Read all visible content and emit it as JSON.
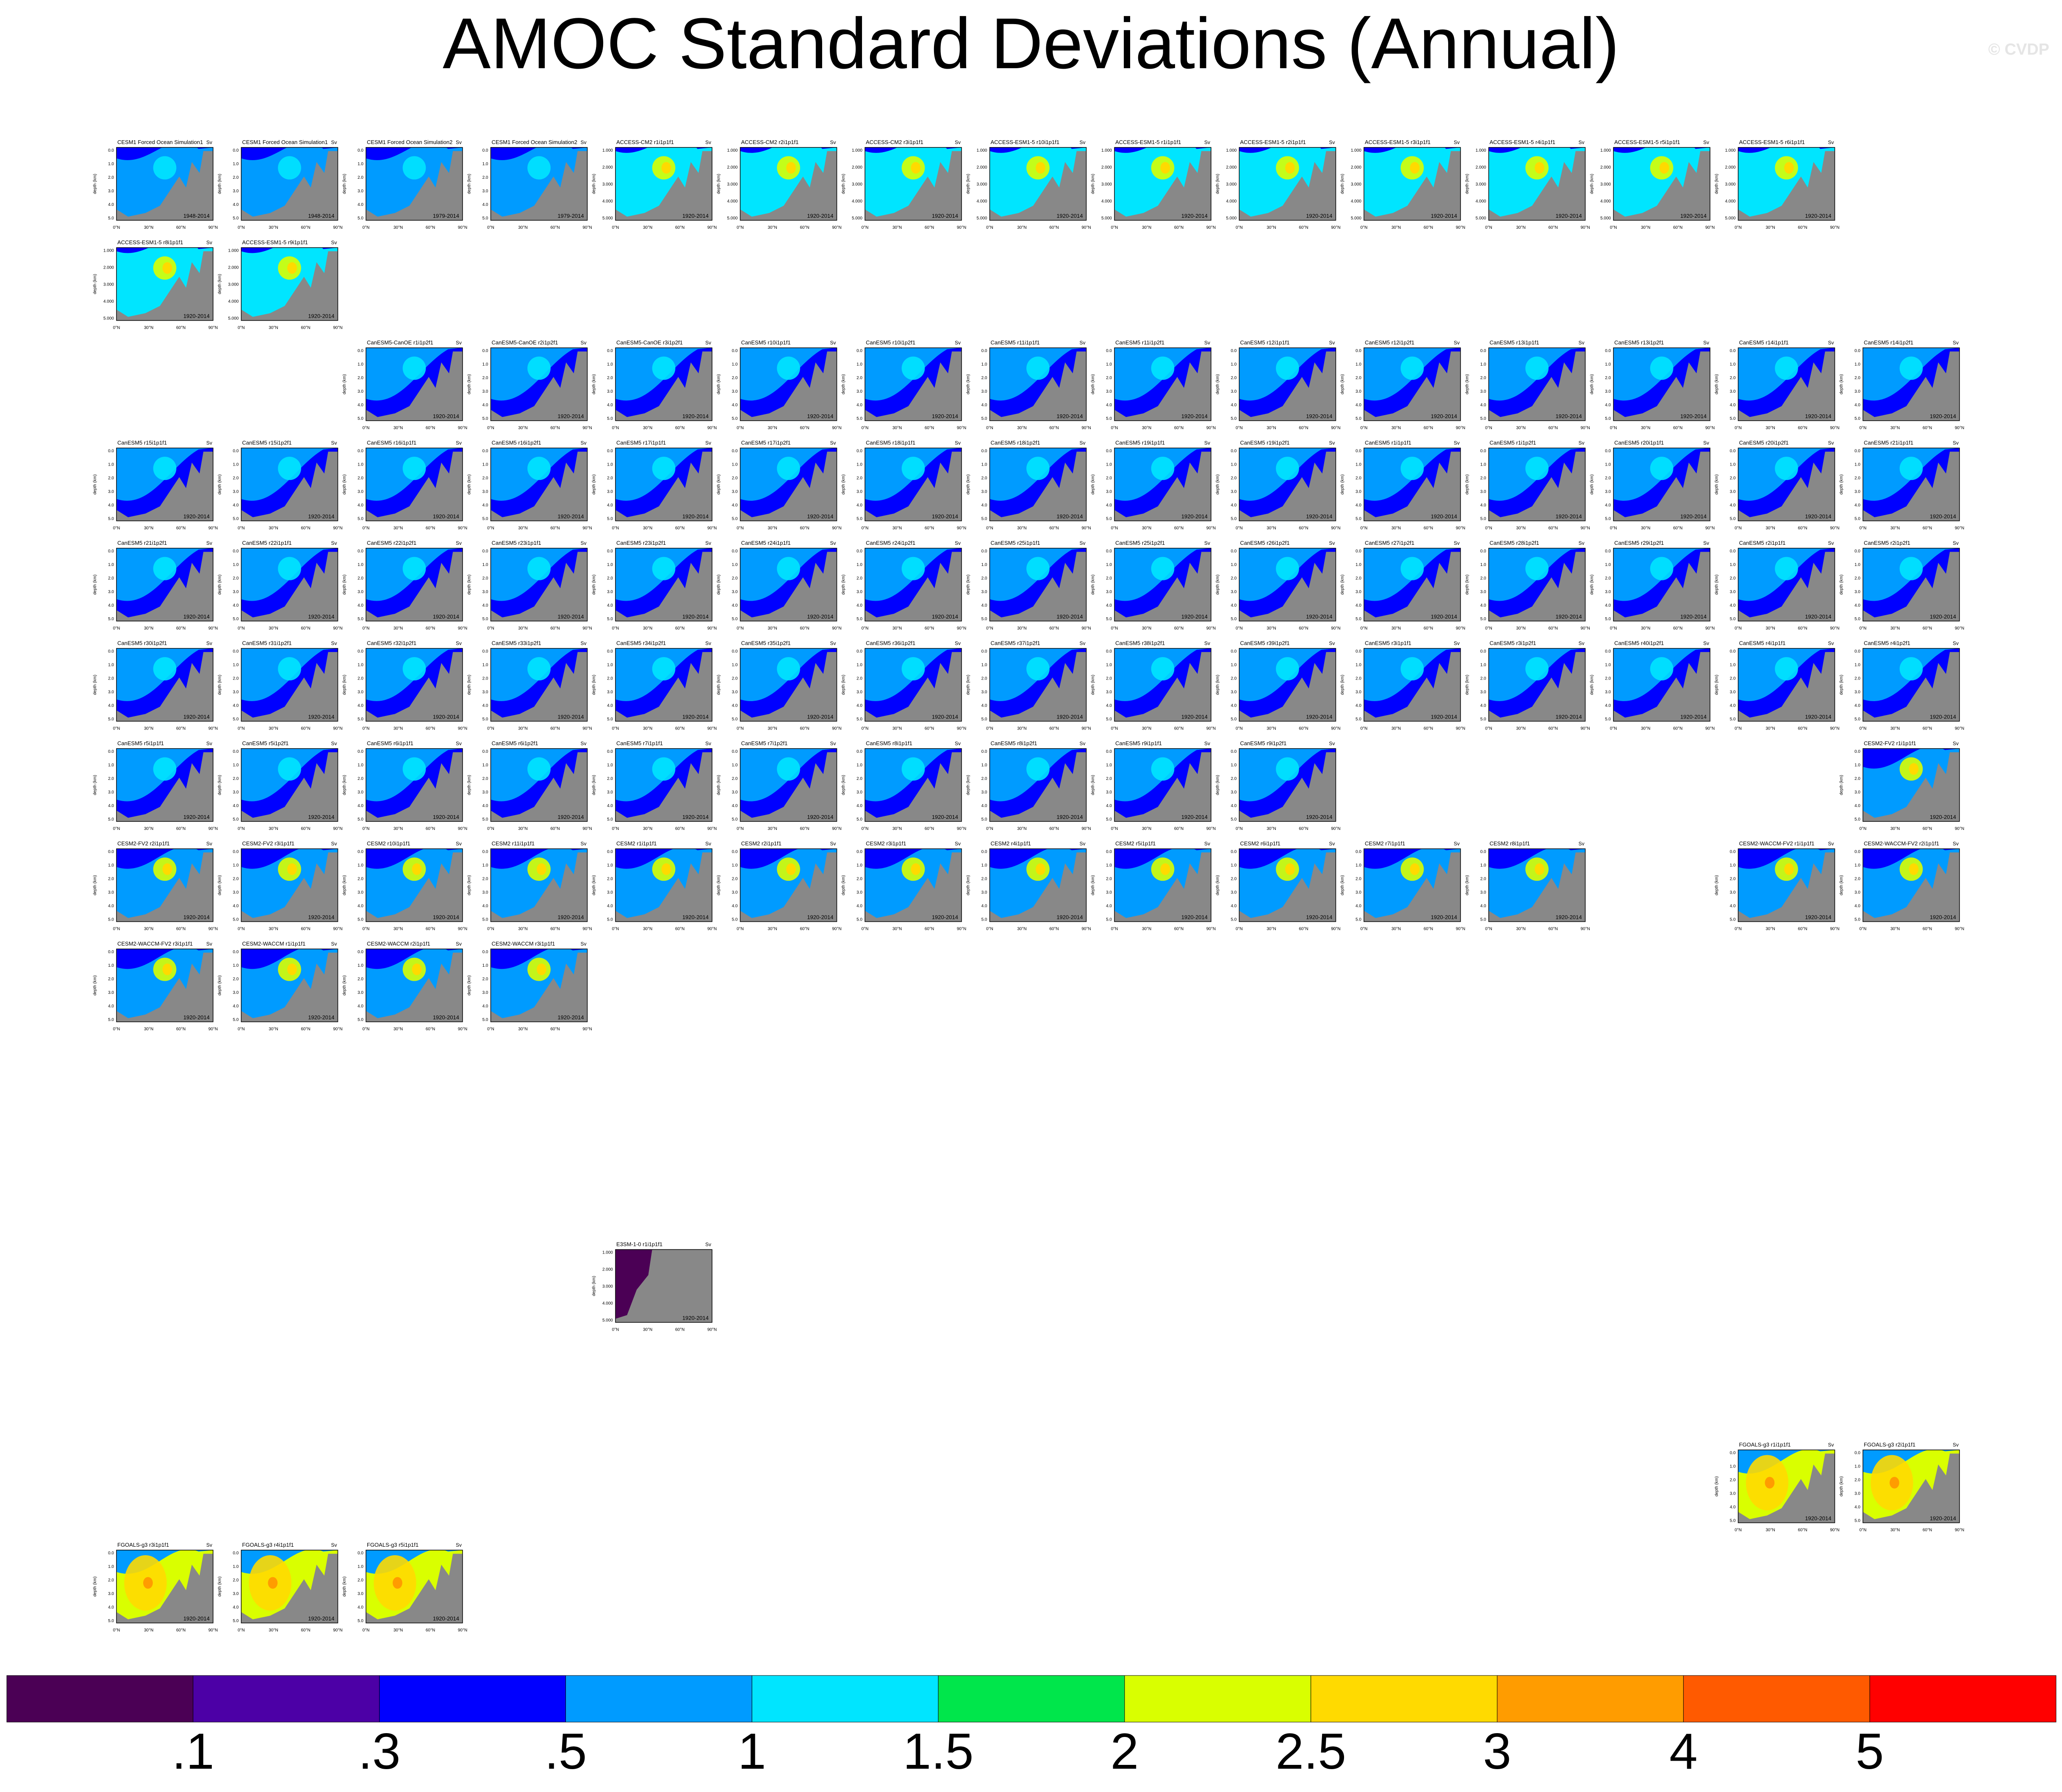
{
  "title": "AMOC Standard Deviations (Annual)",
  "watermark": "© CVDP",
  "chart_data": {
    "type": "heatmap",
    "title": "AMOC Standard Deviations (Annual)",
    "units": "Sv",
    "ylabel": "depth (km)",
    "xticks": [
      "0°N",
      "30°N",
      "60°N",
      "90°N"
    ],
    "colorbar": {
      "labels": [
        ".1",
        ".3",
        ".5",
        "1",
        "1.5",
        "2",
        "2.5",
        "3",
        "4",
        "5"
      ],
      "colors": [
        "#4b0055",
        "#4c00a6",
        "#0000ff",
        "#009bff",
        "#00e5ff",
        "#00e64b",
        "#d9ff00",
        "#ffda00",
        "#ff9c00",
        "#ff5a00",
        "#ff0000"
      ]
    },
    "panels": [
      {
        "row": 0,
        "col": 0,
        "label": "CESM1 Forced Ocean Simulation1",
        "period": "1948-2014",
        "family": "cesm1"
      },
      {
        "row": 0,
        "col": 1,
        "label": "CESM1 Forced Ocean Simulation1",
        "period": "1948-2014",
        "family": "cesm1"
      },
      {
        "row": 0,
        "col": 2,
        "label": "CESM1 Forced Ocean Simulation2",
        "period": "1979-2014",
        "family": "cesm1"
      },
      {
        "row": 0,
        "col": 3,
        "label": "CESM1 Forced Ocean Simulation2",
        "period": "1979-2014",
        "family": "cesm1"
      },
      {
        "row": 0,
        "col": 4,
        "label": "ACCESS-CM2 r1i1p1f1",
        "period": "1920-2014",
        "family": "access"
      },
      {
        "row": 0,
        "col": 5,
        "label": "ACCESS-CM2 r2i1p1f1",
        "period": "1920-2014",
        "family": "access"
      },
      {
        "row": 0,
        "col": 6,
        "label": "ACCESS-CM2 r3i1p1f1",
        "period": "1920-2014",
        "family": "access"
      },
      {
        "row": 0,
        "col": 7,
        "label": "ACCESS-ESM1-5 r10i1p1f1",
        "period": "1920-2014",
        "family": "access"
      },
      {
        "row": 0,
        "col": 8,
        "label": "ACCESS-ESM1-5 r1i1p1f1",
        "period": "1920-2014",
        "family": "access"
      },
      {
        "row": 0,
        "col": 9,
        "label": "ACCESS-ESM1-5 r2i1p1f1",
        "period": "1920-2014",
        "family": "access"
      },
      {
        "row": 0,
        "col": 10,
        "label": "ACCESS-ESM1-5 r3i1p1f1",
        "period": "1920-2014",
        "family": "access"
      },
      {
        "row": 0,
        "col": 11,
        "label": "ACCESS-ESM1-5 r4i1p1f1",
        "period": "1920-2014",
        "family": "access"
      },
      {
        "row": 0,
        "col": 12,
        "label": "ACCESS-ESM1-5 r5i1p1f1",
        "period": "1920-2014",
        "family": "access"
      },
      {
        "row": 0,
        "col": 13,
        "label": "ACCESS-ESM1-5 r6i1p1f1",
        "period": "1920-2014",
        "family": "access"
      },
      {
        "row": 1,
        "col": 0,
        "label": "ACCESS-ESM1-5 r8i1p1f1",
        "period": "1920-2014",
        "family": "access"
      },
      {
        "row": 1,
        "col": 1,
        "label": "ACCESS-ESM1-5 r9i1p1f1",
        "period": "1920-2014",
        "family": "access"
      },
      {
        "row": 2,
        "col": 2,
        "label": "CanESM5-CanOE r1i1p2f1",
        "period": "1920-2014",
        "family": "canesm"
      },
      {
        "row": 2,
        "col": 3,
        "label": "CanESM5-CanOE r2i1p2f1",
        "period": "1920-2014",
        "family": "canesm"
      },
      {
        "row": 2,
        "col": 4,
        "label": "CanESM5-CanOE r3i1p2f1",
        "period": "1920-2014",
        "family": "canesm"
      },
      {
        "row": 2,
        "col": 5,
        "label": "CanESM5 r10i1p1f1",
        "period": "1920-2014",
        "family": "canesm"
      },
      {
        "row": 2,
        "col": 6,
        "label": "CanESM5 r10i1p2f1",
        "period": "1920-2014",
        "family": "canesm"
      },
      {
        "row": 2,
        "col": 7,
        "label": "CanESM5 r11i1p1f1",
        "period": "1920-2014",
        "family": "canesm"
      },
      {
        "row": 2,
        "col": 8,
        "label": "CanESM5 r11i1p2f1",
        "period": "1920-2014",
        "family": "canesm"
      },
      {
        "row": 2,
        "col": 9,
        "label": "CanESM5 r12i1p1f1",
        "period": "1920-2014",
        "family": "canesm"
      },
      {
        "row": 2,
        "col": 10,
        "label": "CanESM5 r12i1p2f1",
        "period": "1920-2014",
        "family": "canesm"
      },
      {
        "row": 2,
        "col": 11,
        "label": "CanESM5 r13i1p1f1",
        "period": "1920-2014",
        "family": "canesm"
      },
      {
        "row": 2,
        "col": 12,
        "label": "CanESM5 r13i1p2f1",
        "period": "1920-2014",
        "family": "canesm"
      },
      {
        "row": 2,
        "col": 13,
        "label": "CanESM5 r14i1p1f1",
        "period": "1920-2014",
        "family": "canesm"
      },
      {
        "row": 2,
        "col": 14,
        "label": "CanESM5 r14i1p2f1",
        "period": "1920-2014",
        "family": "canesm"
      },
      {
        "row": 3,
        "col": 0,
        "label": "CanESM5 r15i1p1f1",
        "period": "1920-2014",
        "family": "canesm"
      },
      {
        "row": 3,
        "col": 1,
        "label": "CanESM5 r15i1p2f1",
        "period": "1920-2014",
        "family": "canesm"
      },
      {
        "row": 3,
        "col": 2,
        "label": "CanESM5 r16i1p1f1",
        "period": "1920-2014",
        "family": "canesm"
      },
      {
        "row": 3,
        "col": 3,
        "label": "CanESM5 r16i1p2f1",
        "period": "1920-2014",
        "family": "canesm"
      },
      {
        "row": 3,
        "col": 4,
        "label": "CanESM5 r17i1p1f1",
        "period": "1920-2014",
        "family": "canesm"
      },
      {
        "row": 3,
        "col": 5,
        "label": "CanESM5 r17i1p2f1",
        "period": "1920-2014",
        "family": "canesm"
      },
      {
        "row": 3,
        "col": 6,
        "label": "CanESM5 r18i1p1f1",
        "period": "1920-2014",
        "family": "canesm"
      },
      {
        "row": 3,
        "col": 7,
        "label": "CanESM5 r18i1p2f1",
        "period": "1920-2014",
        "family": "canesm"
      },
      {
        "row": 3,
        "col": 8,
        "label": "CanESM5 r19i1p1f1",
        "period": "1920-2014",
        "family": "canesm"
      },
      {
        "row": 3,
        "col": 9,
        "label": "CanESM5 r19i1p2f1",
        "period": "1920-2014",
        "family": "canesm"
      },
      {
        "row": 3,
        "col": 10,
        "label": "CanESM5 r1i1p1f1",
        "period": "1920-2014",
        "family": "canesm"
      },
      {
        "row": 3,
        "col": 11,
        "label": "CanESM5 r1i1p2f1",
        "period": "1920-2014",
        "family": "canesm"
      },
      {
        "row": 3,
        "col": 12,
        "label": "CanESM5 r20i1p1f1",
        "period": "1920-2014",
        "family": "canesm"
      },
      {
        "row": 3,
        "col": 13,
        "label": "CanESM5 r20i1p2f1",
        "period": "1920-2014",
        "family": "canesm"
      },
      {
        "row": 3,
        "col": 14,
        "label": "CanESM5 r21i1p1f1",
        "period": "1920-2014",
        "family": "canesm"
      },
      {
        "row": 4,
        "col": 0,
        "label": "CanESM5 r21i1p2f1",
        "period": "1920-2014",
        "family": "canesm"
      },
      {
        "row": 4,
        "col": 1,
        "label": "CanESM5 r22i1p1f1",
        "period": "1920-2014",
        "family": "canesm"
      },
      {
        "row": 4,
        "col": 2,
        "label": "CanESM5 r22i1p2f1",
        "period": "1920-2014",
        "family": "canesm"
      },
      {
        "row": 4,
        "col": 3,
        "label": "CanESM5 r23i1p1f1",
        "period": "1920-2014",
        "family": "canesm"
      },
      {
        "row": 4,
        "col": 4,
        "label": "CanESM5 r23i1p2f1",
        "period": "1920-2014",
        "family": "canesm"
      },
      {
        "row": 4,
        "col": 5,
        "label": "CanESM5 r24i1p1f1",
        "period": "1920-2014",
        "family": "canesm"
      },
      {
        "row": 4,
        "col": 6,
        "label": "CanESM5 r24i1p2f1",
        "period": "1920-2014",
        "family": "canesm"
      },
      {
        "row": 4,
        "col": 7,
        "label": "CanESM5 r25i1p1f1",
        "period": "1920-2014",
        "family": "canesm"
      },
      {
        "row": 4,
        "col": 8,
        "label": "CanESM5 r25i1p2f1",
        "period": "1920-2014",
        "family": "canesm"
      },
      {
        "row": 4,
        "col": 9,
        "label": "CanESM5 r26i1p2f1",
        "period": "1920-2014",
        "family": "canesm"
      },
      {
        "row": 4,
        "col": 10,
        "label": "CanESM5 r27i1p2f1",
        "period": "1920-2014",
        "family": "canesm"
      },
      {
        "row": 4,
        "col": 11,
        "label": "CanESM5 r28i1p2f1",
        "period": "1920-2014",
        "family": "canesm"
      },
      {
        "row": 4,
        "col": 12,
        "label": "CanESM5 r29i1p2f1",
        "period": "1920-2014",
        "family": "canesm"
      },
      {
        "row": 4,
        "col": 13,
        "label": "CanESM5 r2i1p1f1",
        "period": "1920-2014",
        "family": "canesm"
      },
      {
        "row": 4,
        "col": 14,
        "label": "CanESM5 r2i1p2f1",
        "period": "1920-2014",
        "family": "canesm"
      },
      {
        "row": 5,
        "col": 0,
        "label": "CanESM5 r30i1p2f1",
        "period": "1920-2014",
        "family": "canesm"
      },
      {
        "row": 5,
        "col": 1,
        "label": "CanESM5 r31i1p2f1",
        "period": "1920-2014",
        "family": "canesm"
      },
      {
        "row": 5,
        "col": 2,
        "label": "CanESM5 r32i1p2f1",
        "period": "1920-2014",
        "family": "canesm"
      },
      {
        "row": 5,
        "col": 3,
        "label": "CanESM5 r33i1p2f1",
        "period": "1920-2014",
        "family": "canesm"
      },
      {
        "row": 5,
        "col": 4,
        "label": "CanESM5 r34i1p2f1",
        "period": "1920-2014",
        "family": "canesm"
      },
      {
        "row": 5,
        "col": 5,
        "label": "CanESM5 r35i1p2f1",
        "period": "1920-2014",
        "family": "canesm"
      },
      {
        "row": 5,
        "col": 6,
        "label": "CanESM5 r36i1p2f1",
        "period": "1920-2014",
        "family": "canesm"
      },
      {
        "row": 5,
        "col": 7,
        "label": "CanESM5 r37i1p2f1",
        "period": "1920-2014",
        "family": "canesm"
      },
      {
        "row": 5,
        "col": 8,
        "label": "CanESM5 r38i1p2f1",
        "period": "1920-2014",
        "family": "canesm"
      },
      {
        "row": 5,
        "col": 9,
        "label": "CanESM5 r39i1p2f1",
        "period": "1920-2014",
        "family": "canesm"
      },
      {
        "row": 5,
        "col": 10,
        "label": "CanESM5 r3i1p1f1",
        "period": "1920-2014",
        "family": "canesm"
      },
      {
        "row": 5,
        "col": 11,
        "label": "CanESM5 r3i1p2f1",
        "period": "1920-2014",
        "family": "canesm"
      },
      {
        "row": 5,
        "col": 12,
        "label": "CanESM5 r40i1p2f1",
        "period": "1920-2014",
        "family": "canesm"
      },
      {
        "row": 5,
        "col": 13,
        "label": "CanESM5 r4i1p1f1",
        "period": "1920-2014",
        "family": "canesm"
      },
      {
        "row": 5,
        "col": 14,
        "label": "CanESM5 r4i1p2f1",
        "period": "1920-2014",
        "family": "canesm"
      },
      {
        "row": 6,
        "col": 0,
        "label": "CanESM5 r5i1p1f1",
        "period": "1920-2014",
        "family": "canesm"
      },
      {
        "row": 6,
        "col": 1,
        "label": "CanESM5 r5i1p2f1",
        "period": "1920-2014",
        "family": "canesm"
      },
      {
        "row": 6,
        "col": 2,
        "label": "CanESM5 r6i1p1f1",
        "period": "1920-2014",
        "family": "canesm"
      },
      {
        "row": 6,
        "col": 3,
        "label": "CanESM5 r6i1p2f1",
        "period": "1920-2014",
        "family": "canesm"
      },
      {
        "row": 6,
        "col": 4,
        "label": "CanESM5 r7i1p1f1",
        "period": "1920-2014",
        "family": "canesm"
      },
      {
        "row": 6,
        "col": 5,
        "label": "CanESM5 r7i1p2f1",
        "period": "1920-2014",
        "family": "canesm"
      },
      {
        "row": 6,
        "col": 6,
        "label": "CanESM5 r8i1p1f1",
        "period": "1920-2014",
        "family": "canesm"
      },
      {
        "row": 6,
        "col": 7,
        "label": "CanESM5 r8i1p2f1",
        "period": "1920-2014",
        "family": "canesm"
      },
      {
        "row": 6,
        "col": 8,
        "label": "CanESM5 r9i1p1f1",
        "period": "1920-2014",
        "family": "canesm"
      },
      {
        "row": 6,
        "col": 9,
        "label": "CanESM5 r9i1p2f1",
        "period": "1920-2014",
        "family": "canesm"
      },
      {
        "row": 6,
        "col": 14,
        "label": "CESM2-FV2 r1i1p1f1",
        "period": "1920-2014",
        "family": "cesm2"
      },
      {
        "row": 7,
        "col": 0,
        "label": "CESM2-FV2 r2i1p1f1",
        "period": "1920-2014",
        "family": "cesm2"
      },
      {
        "row": 7,
        "col": 1,
        "label": "CESM2-FV2 r3i1p1f1",
        "period": "1920-2014",
        "family": "cesm2"
      },
      {
        "row": 7,
        "col": 2,
        "label": "CESM2 r10i1p1f1",
        "period": "1920-2014",
        "family": "cesm2"
      },
      {
        "row": 7,
        "col": 3,
        "label": "CESM2 r11i1p1f1",
        "period": "1920-2014",
        "family": "cesm2"
      },
      {
        "row": 7,
        "col": 4,
        "label": "CESM2 r1i1p1f1",
        "period": "1920-2014",
        "family": "cesm2"
      },
      {
        "row": 7,
        "col": 5,
        "label": "CESM2 r2i1p1f1",
        "period": "1920-2014",
        "family": "cesm2"
      },
      {
        "row": 7,
        "col": 6,
        "label": "CESM2 r3i1p1f1",
        "period": "1920-2014",
        "family": "cesm2"
      },
      {
        "row": 7,
        "col": 7,
        "label": "CESM2 r4i1p1f1",
        "period": "1920-2014",
        "family": "cesm2"
      },
      {
        "row": 7,
        "col": 8,
        "label": "CESM2 r5i1p1f1",
        "period": "1920-2014",
        "family": "cesm2"
      },
      {
        "row": 7,
        "col": 9,
        "label": "CESM2 r6i1p1f1",
        "period": "1920-2014",
        "family": "cesm2"
      },
      {
        "row": 7,
        "col": 10,
        "label": "CESM2 r7i1p1f1",
        "period": "1920-2014",
        "family": "cesm2"
      },
      {
        "row": 7,
        "col": 11,
        "label": "CESM2 r8i1p1f1",
        "period": "1920-2014",
        "family": "cesm2"
      },
      {
        "row": 7,
        "col": 13,
        "label": "CESM2-WACCM-FV2 r1i1p1f1",
        "period": "1920-2014",
        "family": "cesm2"
      },
      {
        "row": 7,
        "col": 14,
        "label": "CESM2-WACCM-FV2 r2i1p1f1",
        "period": "1920-2014",
        "family": "cesm2"
      },
      {
        "row": 8,
        "col": 0,
        "label": "CESM2-WACCM-FV2 r3i1p1f1",
        "period": "1920-2014",
        "family": "cesm2"
      },
      {
        "row": 8,
        "col": 1,
        "label": "CESM2-WACCM r1i1p1f1",
        "period": "1920-2014",
        "family": "cesm2"
      },
      {
        "row": 8,
        "col": 2,
        "label": "CESM2-WACCM r2i1p1f1",
        "period": "1920-2014",
        "family": "cesm2"
      },
      {
        "row": 8,
        "col": 3,
        "label": "CESM2-WACCM r3i1p1f1",
        "period": "1920-2014",
        "family": "cesm2"
      },
      {
        "row": 11,
        "col": 4,
        "label": "E3SM-1-0 r1i1p1f1",
        "period": "1920-2014",
        "family": "e3sm"
      },
      {
        "row": 13,
        "col": 13,
        "label": "FGOALS-g3 r1i1p1f1",
        "period": "1920-2014",
        "family": "fgoals"
      },
      {
        "row": 13,
        "col": 14,
        "label": "FGOALS-g3 r2i1p1f1",
        "period": "1920-2014",
        "family": "fgoals"
      },
      {
        "row": 14,
        "col": 0,
        "label": "FGOALS-g3 r3i1p1f1",
        "period": "1920-2014",
        "family": "fgoals"
      },
      {
        "row": 14,
        "col": 1,
        "label": "FGOALS-g3 r4i1p1f1",
        "period": "1920-2014",
        "family": "fgoals"
      },
      {
        "row": 14,
        "col": 2,
        "label": "FGOALS-g3 r5i1p1f1",
        "period": "1920-2014",
        "family": "fgoals"
      }
    ]
  }
}
